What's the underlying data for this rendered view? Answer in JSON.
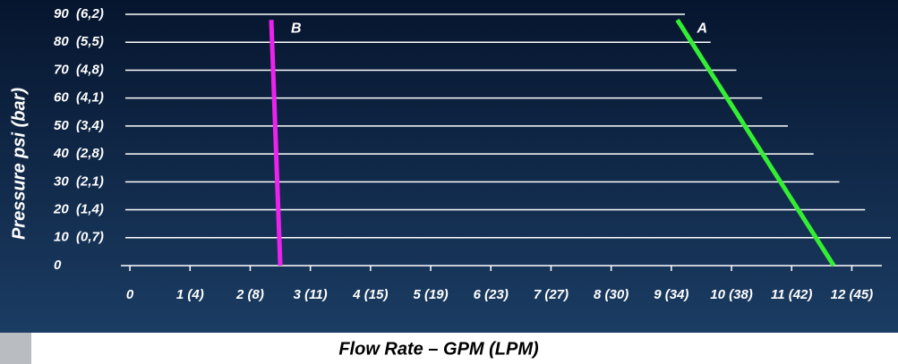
{
  "chart_data": {
    "type": "line",
    "y_label": "Pressure psi (bar)",
    "x_label": "Flow Rate – GPM (LPM)",
    "xlim": [
      -0.15,
      12.5
    ],
    "xticks": [
      0,
      {
        "value": 1,
        "label": "1 (4)"
      },
      {
        "value": 2,
        "label": "2 (8)"
      },
      {
        "value": 3,
        "label": "3 (11)"
      },
      {
        "value": 4,
        "label": "4 (15)"
      },
      {
        "value": 5,
        "label": "5 (19)"
      },
      {
        "value": 6,
        "label": "6 (23)"
      },
      {
        "value": 7,
        "label": "7 (27)"
      },
      {
        "value": 8,
        "label": "8 (30)"
      },
      {
        "value": 9,
        "label": "9 (34)"
      },
      {
        "value": 10,
        "label": "10 (38)"
      },
      {
        "value": 11,
        "label": "11 (42)"
      },
      {
        "value": 12,
        "label": "12 (45)"
      }
    ],
    "ylim": [
      0,
      90
    ],
    "yticks": [
      0,
      {
        "value": 10,
        "label": "10  (0,7)"
      },
      {
        "value": 20,
        "label": "20  (1,4)"
      },
      {
        "value": 30,
        "label": "30  (2,1)"
      },
      {
        "value": 40,
        "label": "40  (2,8)"
      },
      {
        "value": 50,
        "label": "50  (3,4)"
      },
      {
        "value": 60,
        "label": "60  (4,1)"
      },
      {
        "value": 70,
        "label": "70  (4,8)"
      },
      {
        "value": 80,
        "label": "80  (5,5)"
      },
      {
        "value": 90,
        "label": "90  (6,2)"
      }
    ],
    "grid": true,
    "series": [
      {
        "name": "A",
        "color": "#33ee33",
        "x": [
          9.1,
          11.7
        ],
        "values": [
          88,
          0
        ]
      },
      {
        "name": "B",
        "color": "#ee22ee",
        "x": [
          2.35,
          2.5
        ],
        "values": [
          88,
          0
        ]
      }
    ]
  }
}
